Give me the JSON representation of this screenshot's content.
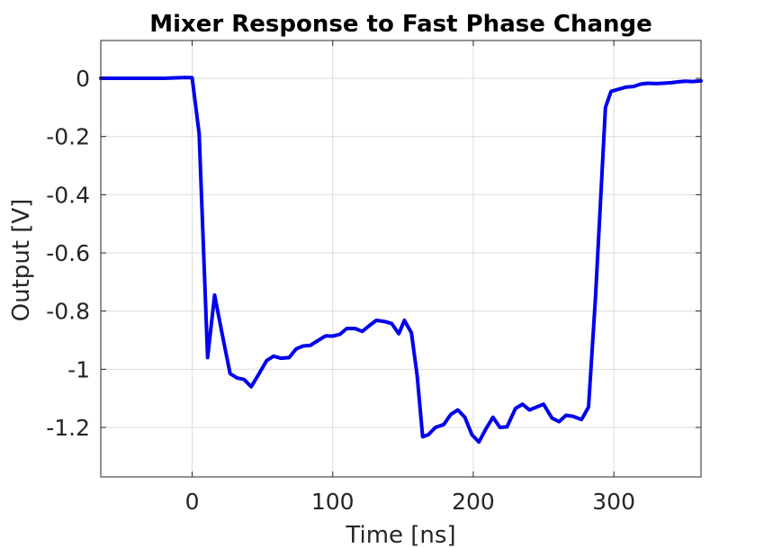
{
  "chart_data": {
    "type": "line",
    "title": "Mixer Response to Fast Phase Change",
    "xlabel": "Time [ns]",
    "ylabel": "Output [V]",
    "xlim": [
      -65,
      362
    ],
    "ylim": [
      -1.37,
      0.13
    ],
    "xticks": [
      0,
      100,
      200,
      300
    ],
    "xtick_labels": [
      "0",
      "100",
      "200",
      "300"
    ],
    "yticks": [
      0,
      -0.2,
      -0.4,
      -0.6,
      -0.8,
      -1,
      -1.2
    ],
    "ytick_labels": [
      "0",
      "-0.2",
      "-0.4",
      "-0.6",
      "-0.8",
      "-1",
      "-1.2"
    ],
    "grid": true,
    "line_color": "#0000ee",
    "series": [
      {
        "x": [
          -65,
          -40,
          -20,
          -5,
          0,
          5,
          11,
          16,
          21,
          27,
          32,
          37,
          42,
          47,
          53,
          58,
          63,
          69,
          74,
          79,
          84,
          90,
          95,
          100,
          105,
          110,
          116,
          121,
          126,
          131,
          137,
          142,
          147,
          151,
          156,
          160,
          164,
          168,
          173,
          179,
          184,
          189,
          194,
          199,
          204,
          209,
          214,
          219,
          224,
          230,
          235,
          240,
          245,
          250,
          256,
          261,
          266,
          271,
          277,
          282,
          287,
          294,
          298,
          303,
          309,
          314,
          319,
          324,
          330,
          335,
          341,
          346,
          351,
          356,
          362
        ],
        "y": [
          0.0,
          0.0,
          0.0,
          0.003,
          0.002,
          -0.19,
          -0.96,
          -0.745,
          -0.87,
          -1.015,
          -1.03,
          -1.035,
          -1.06,
          -1.02,
          -0.97,
          -0.955,
          -0.962,
          -0.96,
          -0.93,
          -0.92,
          -0.918,
          -0.9,
          -0.885,
          -0.886,
          -0.88,
          -0.86,
          -0.86,
          -0.87,
          -0.85,
          -0.832,
          -0.836,
          -0.843,
          -0.878,
          -0.832,
          -0.875,
          -1.02,
          -1.232,
          -1.225,
          -1.2,
          -1.19,
          -1.155,
          -1.14,
          -1.165,
          -1.225,
          -1.25,
          -1.205,
          -1.165,
          -1.2,
          -1.198,
          -1.135,
          -1.12,
          -1.14,
          -1.13,
          -1.12,
          -1.168,
          -1.18,
          -1.158,
          -1.162,
          -1.173,
          -1.13,
          -0.75,
          -0.1,
          -0.045,
          -0.038,
          -0.03,
          -0.028,
          -0.02,
          -0.017,
          -0.018,
          -0.017,
          -0.015,
          -0.012,
          -0.01,
          -0.011,
          -0.009
        ]
      }
    ]
  }
}
